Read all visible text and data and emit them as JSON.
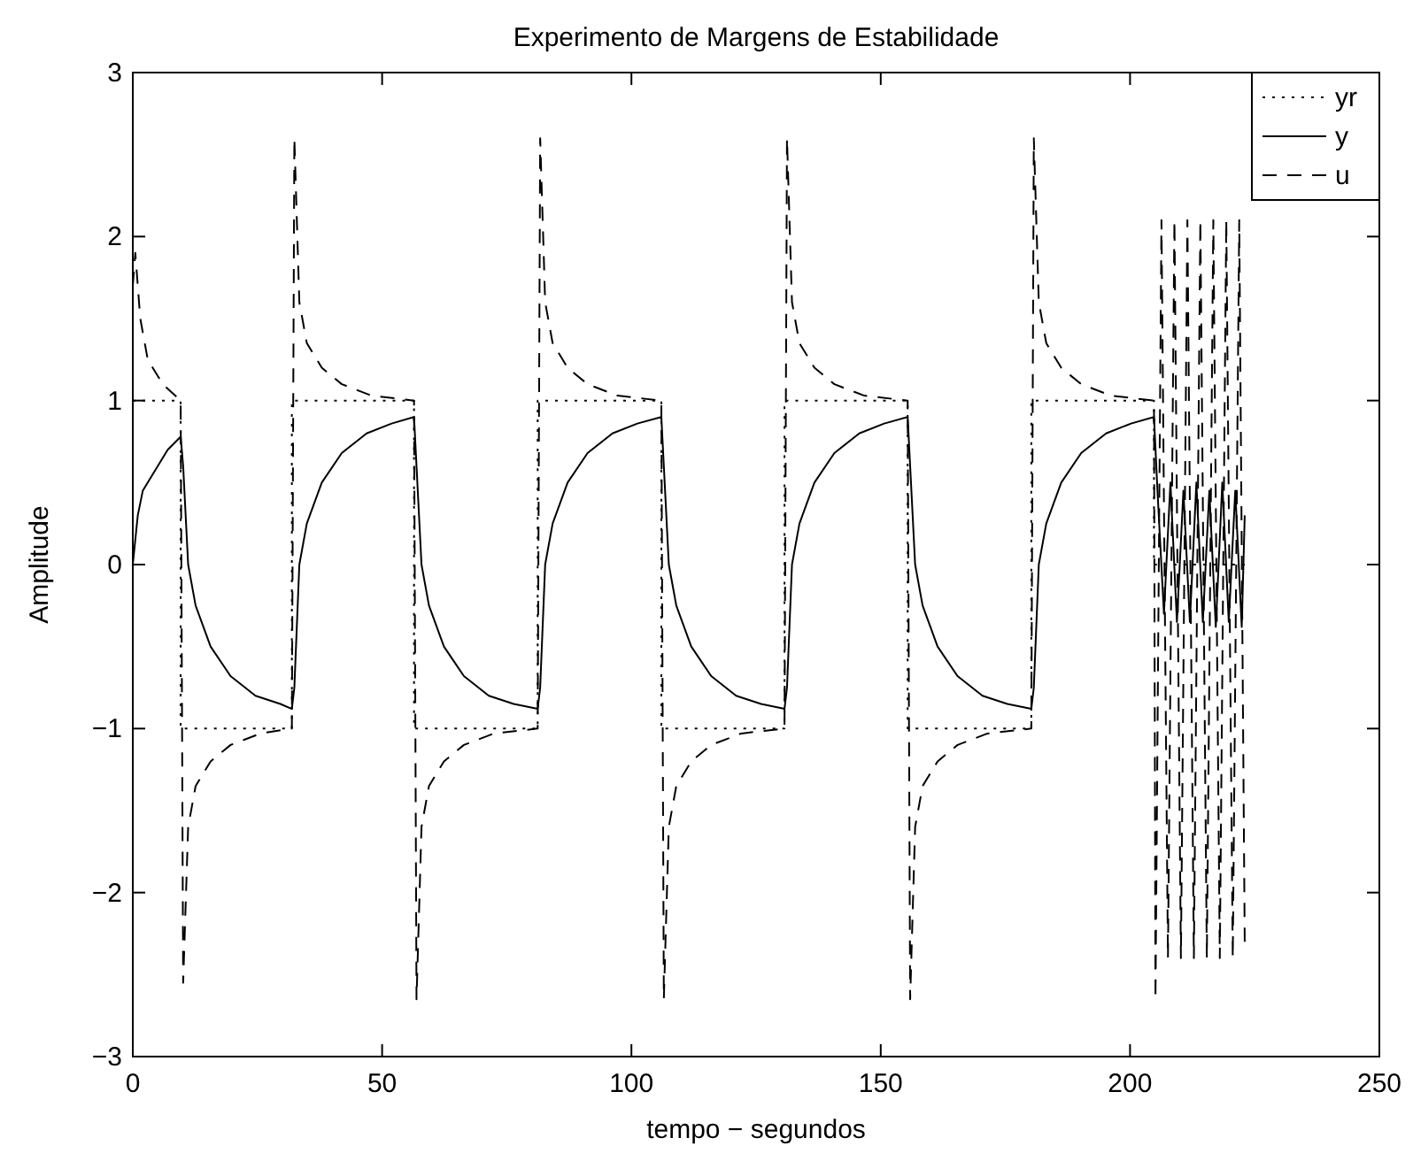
{
  "chart_data": {
    "type": "line",
    "title": "Experimento de Margens de Estabilidade",
    "xlabel": "tempo − segundos",
    "ylabel": "Amplitude",
    "xlim": [
      0,
      250
    ],
    "xticks": [
      0,
      50,
      100,
      150,
      200,
      250
    ],
    "ylim": [
      -3,
      3
    ],
    "yticks": [
      -3,
      -2,
      -1,
      0,
      1,
      2,
      3
    ],
    "grid": false,
    "legend": "top right",
    "series": [
      {
        "name": "yr",
        "color": "#000000",
        "line_style": "dotted",
        "x": [
          0,
          9.6,
          9.6,
          31.9,
          31.9,
          56.4,
          56.4,
          81.2,
          81.2,
          106,
          106,
          130.7,
          130.7,
          155.4,
          155.4,
          180.2,
          180.2,
          204.8,
          204.8,
          223
        ],
        "values": [
          1,
          1,
          -1,
          -1,
          1,
          1,
          -1,
          -1,
          1,
          1,
          -1,
          -1,
          1,
          1,
          -1,
          -1,
          1,
          1,
          0,
          0
        ]
      },
      {
        "name": "y",
        "color": "#000000",
        "line_style": "solid",
        "x": [
          0,
          1,
          2,
          4,
          7,
          9.6,
          10.1,
          11.1,
          12.6,
          15.6,
          19.6,
          24.6,
          29.6,
          31.9,
          32.4,
          33.4,
          34.9,
          37.9,
          41.9,
          46.9,
          51.9,
          56.4,
          56.9,
          57.9,
          59.4,
          62.4,
          66.4,
          71.4,
          76.4,
          81.2,
          81.7,
          82.7,
          84.2,
          87.2,
          91.2,
          96.2,
          101.2,
          106,
          106.5,
          107.5,
          109,
          112,
          116,
          121,
          126,
          130.7,
          131.2,
          132.2,
          133.7,
          136.7,
          140.7,
          145.7,
          150.7,
          155.4,
          155.9,
          156.9,
          158.4,
          161.4,
          165.4,
          170.4,
          175.4,
          180.2,
          180.7,
          181.7,
          183.2,
          186.2,
          190.2,
          195.2,
          200.2,
          204.8,
          205.5,
          206.8,
          208.1,
          209.4,
          210.7,
          212,
          213.3,
          214.6,
          215.9,
          217.2,
          218.5,
          219.8,
          221.1,
          222.4,
          223
        ],
        "values": [
          0,
          0.3,
          0.45,
          0.55,
          0.7,
          0.78,
          0.6,
          0,
          -0.25,
          -0.5,
          -0.68,
          -0.8,
          -0.85,
          -0.88,
          -0.75,
          0,
          0.25,
          0.5,
          0.68,
          0.8,
          0.86,
          0.9,
          0.6,
          0,
          -0.25,
          -0.5,
          -0.68,
          -0.8,
          -0.85,
          -0.88,
          -0.75,
          0,
          0.25,
          0.5,
          0.68,
          0.8,
          0.86,
          0.9,
          0.6,
          0,
          -0.25,
          -0.5,
          -0.68,
          -0.8,
          -0.85,
          -0.88,
          -0.75,
          0,
          0.25,
          0.5,
          0.68,
          0.8,
          0.86,
          0.9,
          0.6,
          0,
          -0.25,
          -0.5,
          -0.68,
          -0.8,
          -0.85,
          -0.88,
          -0.75,
          0,
          0.25,
          0.5,
          0.68,
          0.8,
          0.86,
          0.9,
          0.45,
          -0.3,
          0.5,
          -0.35,
          0.45,
          -0.35,
          0.5,
          -0.35,
          0.45,
          -0.38,
          0.5,
          -0.35,
          0.45,
          -0.38,
          0.3
        ]
      },
      {
        "name": "u",
        "color": "#000000",
        "line_style": "dashed",
        "x": [
          0,
          0.5,
          1.5,
          3,
          6,
          9.6,
          10.1,
          11.1,
          12.6,
          15.6,
          19.6,
          25.6,
          31.9,
          32.4,
          33.4,
          34.9,
          37.9,
          41.9,
          47.9,
          56.4,
          56.9,
          57.9,
          59.4,
          62.4,
          66.4,
          72.4,
          81.2,
          81.7,
          82.7,
          84.2,
          87.2,
          91.2,
          97.2,
          106,
          106.5,
          107.5,
          109,
          112,
          116,
          122,
          130.7,
          131.2,
          132.2,
          133.7,
          136.7,
          140.7,
          146.7,
          155.4,
          155.9,
          156.9,
          158.4,
          161.4,
          165.4,
          171.4,
          180.2,
          180.7,
          181.7,
          183.2,
          186.2,
          190.2,
          196.2,
          204.8,
          205.1,
          206.3,
          207.6,
          208.9,
          210.2,
          211.5,
          212.8,
          214.1,
          215.4,
          216.7,
          218,
          219.3,
          220.6,
          221.9,
          223
        ],
        "values": [
          1.7,
          1.9,
          1.5,
          1.25,
          1.1,
          1,
          -2.55,
          -1.6,
          -1.35,
          -1.2,
          -1.1,
          -1.03,
          -1,
          2.6,
          1.6,
          1.35,
          1.2,
          1.1,
          1.03,
          1,
          -2.65,
          -1.6,
          -1.35,
          -1.2,
          -1.1,
          -1.03,
          -1,
          2.6,
          1.6,
          1.35,
          1.2,
          1.1,
          1.03,
          1,
          -2.65,
          -1.6,
          -1.35,
          -1.2,
          -1.1,
          -1.03,
          -1,
          2.6,
          1.6,
          1.35,
          1.2,
          1.1,
          1.03,
          1,
          -2.65,
          -1.6,
          -1.35,
          -1.2,
          -1.1,
          -1.03,
          -1,
          2.6,
          1.6,
          1.35,
          1.2,
          1.1,
          1.03,
          1,
          -2.65,
          2.1,
          -2.4,
          2.1,
          -2.4,
          2.1,
          -2.4,
          2.1,
          -2.4,
          2.1,
          -2.4,
          2.1,
          -2.4,
          2.1,
          -2.3
        ]
      }
    ]
  }
}
